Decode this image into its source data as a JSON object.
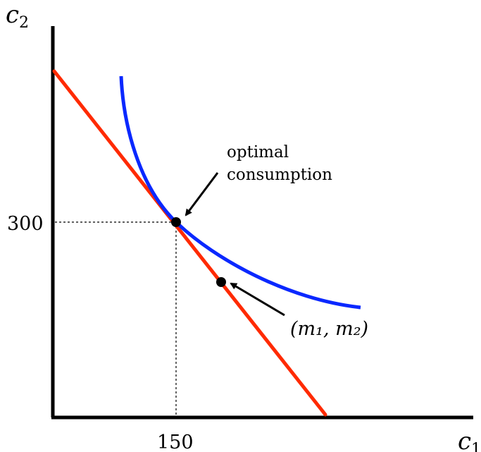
{
  "axes": {
    "y_label": "c",
    "y_label_subscript": "2",
    "x_label": "c",
    "x_label_subscript": "1"
  },
  "ticks": {
    "y_value": "300",
    "x_value": "150"
  },
  "annotations": {
    "optimal_line1": "optimal",
    "optimal_line2": "consumption",
    "endowment": "(m₁, m₂)"
  },
  "colors": {
    "budget_line": "#ff2a00",
    "indifference_curve": "#0a28ff",
    "axes": "#000000",
    "points": "#000000"
  }
}
